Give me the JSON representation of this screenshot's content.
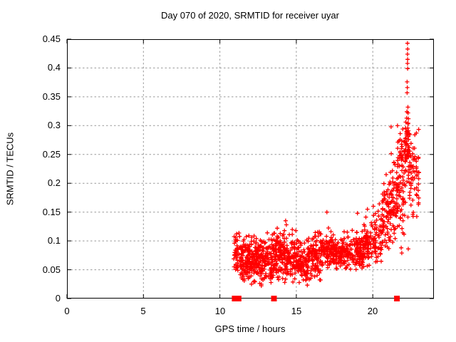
{
  "chart_data": {
    "type": "scatter",
    "title": "Day 070 of 2020, SRMTID for receiver uyar",
    "xlabel": "GPS time / hours",
    "ylabel": "SRMTID / TECUs",
    "xlim": [
      0,
      24
    ],
    "ylim": [
      0,
      0.45
    ],
    "xticks": [
      0,
      5,
      10,
      15,
      20
    ],
    "xtick_labels": [
      "0",
      "5",
      "10",
      "15",
      "20"
    ],
    "yticks": [
      0,
      0.05,
      0.1,
      0.15,
      0.2,
      0.25,
      0.3,
      0.35,
      0.4,
      0.45
    ],
    "ytick_labels": [
      "0",
      "0.05",
      "0.1",
      "0.15",
      "0.2",
      "0.25",
      "0.3",
      "0.35",
      "0.4",
      "0.45"
    ],
    "grid": true,
    "legend": false,
    "marker": "plus",
    "marker_color": "#ff0000",
    "grid_color": "#999999",
    "border_color": "#000000",
    "background": "#ffffff",
    "seed": 20200070,
    "description": "Dense band of SRMTID values ~0.03-0.12 TECU from ~11h to ~19.5h GPS time, rising after 19h to a spike reaching ~0.44 TECU near 22.3h; red square flags on the time axis mark data gaps.",
    "clusters": [
      {
        "x0": 10.9,
        "x1": 11.35,
        "n": 45,
        "mean": 0.078,
        "sd": 0.02,
        "ymin": 0.03,
        "ymax": 0.115
      },
      {
        "x0": 11.35,
        "x1": 12.0,
        "n": 110,
        "mean": 0.068,
        "sd": 0.022,
        "ymin": 0.022,
        "ymax": 0.115
      },
      {
        "x0": 12.0,
        "x1": 12.7,
        "n": 110,
        "mean": 0.07,
        "sd": 0.02,
        "ymin": 0.02,
        "ymax": 0.12
      },
      {
        "x0": 12.7,
        "x1": 13.5,
        "n": 110,
        "mean": 0.065,
        "sd": 0.02,
        "ymin": 0.022,
        "ymax": 0.115
      },
      {
        "x0": 13.5,
        "x1": 14.2,
        "n": 110,
        "mean": 0.075,
        "sd": 0.02,
        "ymin": 0.03,
        "ymax": 0.125
      },
      {
        "x0": 14.2,
        "x1": 15.0,
        "n": 110,
        "mean": 0.07,
        "sd": 0.02,
        "ymin": 0.025,
        "ymax": 0.12
      },
      {
        "x0": 15.0,
        "x1": 15.8,
        "n": 110,
        "mean": 0.062,
        "sd": 0.02,
        "ymin": 0.018,
        "ymax": 0.105
      },
      {
        "x0": 15.8,
        "x1": 16.6,
        "n": 110,
        "mean": 0.07,
        "sd": 0.02,
        "ymin": 0.03,
        "ymax": 0.12
      },
      {
        "x0": 16.6,
        "x1": 17.6,
        "n": 120,
        "mean": 0.082,
        "sd": 0.014,
        "ymin": 0.045,
        "ymax": 0.125
      },
      {
        "x0": 17.6,
        "x1": 18.6,
        "n": 110,
        "mean": 0.08,
        "sd": 0.014,
        "ymin": 0.04,
        "ymax": 0.12
      },
      {
        "x0": 18.6,
        "x1": 19.4,
        "n": 90,
        "mean": 0.082,
        "sd": 0.016,
        "ymin": 0.04,
        "ymax": 0.13
      },
      {
        "x0": 19.4,
        "x1": 20.0,
        "n": 70,
        "mean": 0.095,
        "sd": 0.02,
        "ymin": 0.05,
        "ymax": 0.15
      },
      {
        "x0": 20.0,
        "x1": 20.6,
        "n": 60,
        "mean": 0.11,
        "sd": 0.025,
        "ymin": 0.06,
        "ymax": 0.17,
        "columns": 8
      },
      {
        "x0": 20.6,
        "x1": 21.1,
        "n": 65,
        "mean": 0.15,
        "sd": 0.035,
        "ymin": 0.08,
        "ymax": 0.23,
        "columns": 6
      },
      {
        "x0": 21.1,
        "x1": 21.6,
        "n": 70,
        "mean": 0.17,
        "sd": 0.04,
        "ymin": 0.09,
        "ymax": 0.26,
        "columns": 6
      },
      {
        "x0": 21.6,
        "x1": 22.1,
        "n": 80,
        "mean": 0.2,
        "sd": 0.05,
        "ymin": 0.1,
        "ymax": 0.3,
        "columns": 6
      },
      {
        "x0": 22.1,
        "x1": 22.45,
        "n": 60,
        "mean": 0.25,
        "sd": 0.05,
        "ymin": 0.13,
        "ymax": 0.335,
        "columns": 4
      },
      {
        "x0": 22.45,
        "x1": 23.05,
        "n": 55,
        "mean": 0.21,
        "sd": 0.045,
        "ymin": 0.12,
        "ymax": 0.3,
        "columns": 5
      }
    ],
    "explicit_points": [
      [
        22.27,
        0.443
      ],
      [
        22.28,
        0.433
      ],
      [
        22.27,
        0.424
      ],
      [
        22.28,
        0.415
      ],
      [
        22.27,
        0.408
      ],
      [
        22.28,
        0.399
      ],
      [
        22.25,
        0.376
      ],
      [
        22.26,
        0.366
      ],
      [
        22.25,
        0.357
      ],
      [
        22.3,
        0.332
      ],
      [
        22.31,
        0.322
      ],
      [
        22.33,
        0.312
      ],
      [
        22.3,
        0.303
      ],
      [
        22.29,
        0.296
      ],
      [
        22.33,
        0.291
      ],
      [
        22.31,
        0.286
      ],
      [
        22.32,
        0.281
      ],
      [
        22.34,
        0.276
      ],
      [
        21.2,
        0.298
      ],
      [
        17.0,
        0.15
      ],
      [
        19.0,
        0.148
      ],
      [
        19.65,
        0.155
      ],
      [
        14.3,
        0.135
      ],
      [
        14.35,
        0.128
      ],
      [
        21.86,
        0.088
      ],
      [
        21.9,
        0.079
      ],
      [
        22.32,
        0.086
      ]
    ],
    "axis_marker_hours": [
      10.97,
      11.22,
      13.54,
      21.58
    ]
  }
}
